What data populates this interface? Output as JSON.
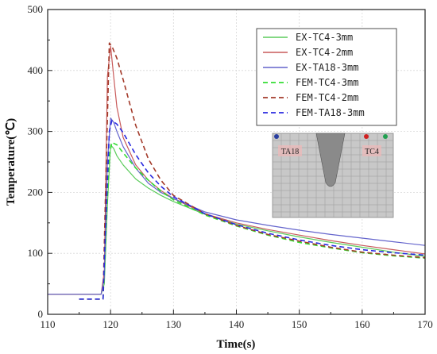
{
  "chart_data": {
    "type": "line",
    "title": "",
    "xlabel": "Time(s)",
    "ylabel": "Temperature(℃)",
    "xlim": [
      110,
      170
    ],
    "ylim": [
      0,
      500
    ],
    "xticks": [
      110,
      120,
      130,
      140,
      150,
      160,
      170
    ],
    "yticks": [
      0,
      100,
      200,
      300,
      400,
      500
    ],
    "grid": true,
    "legend_position": "top-right",
    "series": [
      {
        "name": "EX-TC4-3mm",
        "color": "#5ccc5c",
        "dash": "solid",
        "x": [
          110,
          118.5,
          119,
          119.5,
          120,
          120.5,
          121,
          122,
          124,
          126,
          128,
          130,
          135,
          140,
          145,
          150,
          155,
          160,
          165,
          170
        ],
        "y": [
          33,
          33,
          50,
          180,
          278,
          272,
          260,
          245,
          222,
          207,
          195,
          185,
          164,
          148,
          137,
          127,
          118,
          110,
          102,
          95
        ]
      },
      {
        "name": "EX-TC4-2mm",
        "color": "#c85a5a",
        "dash": "solid",
        "x": [
          110,
          118.5,
          119,
          119.5,
          120,
          120.5,
          121,
          122,
          124,
          126,
          128,
          130,
          135,
          140,
          145,
          150,
          155,
          160,
          165,
          170
        ],
        "y": [
          33,
          33,
          70,
          390,
          440,
          390,
          340,
          290,
          245,
          220,
          203,
          190,
          165,
          150,
          139,
          130,
          121,
          113,
          106,
          99
        ]
      },
      {
        "name": "EX-TA18-3mm",
        "color": "#6464cc",
        "dash": "solid",
        "x": [
          110,
          118.5,
          119,
          119.5,
          120,
          120.5,
          121,
          122,
          124,
          126,
          128,
          130,
          135,
          140,
          145,
          150,
          155,
          160,
          165,
          170
        ],
        "y": [
          33,
          33,
          60,
          250,
          322,
          315,
          300,
          275,
          240,
          215,
          200,
          190,
          168,
          155,
          146,
          138,
          131,
          125,
          119,
          113
        ]
      },
      {
        "name": "FEM-TC4-3mm",
        "color": "#33dd33",
        "dash": "dashed",
        "x": [
          115,
          118.8,
          119.2,
          119.8,
          120.2,
          121,
          122,
          124,
          126,
          128,
          130,
          135,
          140,
          145,
          150,
          155,
          160,
          165,
          170
        ],
        "y": [
          25,
          25,
          120,
          260,
          282,
          278,
          265,
          240,
          220,
          202,
          188,
          163,
          145,
          130,
          118,
          109,
          101,
          96,
          92
        ]
      },
      {
        "name": "FEM-TC4-2mm",
        "color": "#a33a2a",
        "dash": "dashed",
        "x": [
          115,
          118.8,
          119.2,
          119.8,
          120.2,
          121,
          122,
          124,
          126,
          128,
          130,
          135,
          140,
          145,
          150,
          155,
          160,
          165,
          170
        ],
        "y": [
          25,
          25,
          200,
          445,
          440,
          420,
          385,
          310,
          255,
          220,
          195,
          165,
          146,
          131,
          120,
          110,
          102,
          97,
          93
        ]
      },
      {
        "name": "FEM-TA18-3mm",
        "color": "#2a2ae0",
        "dash": "dashed",
        "x": [
          115,
          118.8,
          119.2,
          119.8,
          120.2,
          121,
          122,
          124,
          126,
          128,
          130,
          135,
          140,
          145,
          150,
          155,
          160,
          165,
          170
        ],
        "y": [
          25,
          25,
          140,
          300,
          318,
          312,
          298,
          262,
          232,
          210,
          193,
          165,
          147,
          133,
          122,
          113,
          106,
          101,
          97
        ]
      }
    ]
  },
  "inset": {
    "labels": {
      "left": "TA18",
      "right": "TC4"
    },
    "marker_colors": {
      "blue": "#2a3fa0",
      "red": "#d02020",
      "green": "#20a050"
    }
  }
}
